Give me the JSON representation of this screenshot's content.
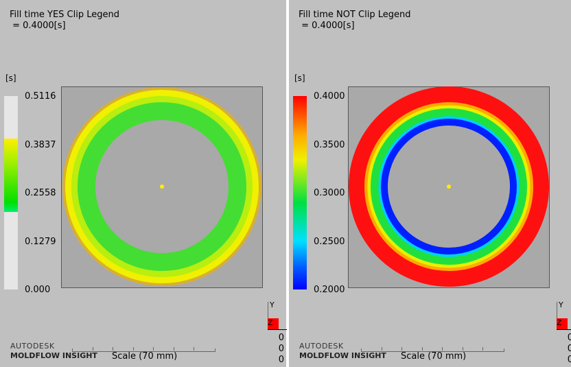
{
  "left": {
    "title": "Fill time YES Clip Legend",
    "subtitle": " = 0.4000[s]",
    "unit": "[s]",
    "ticks": [
      "0.5116",
      "0.3837",
      "0.2558",
      "0.1279",
      "0.000"
    ],
    "colors": {
      "ring_outer": "#ffee00",
      "ring_inner": "#22dd22"
    }
  },
  "right": {
    "title": "Fill time NOT Clip Legend",
    "subtitle": " = 0.4000[s]",
    "unit": "[s]",
    "ticks": [
      "0.4000",
      "0.3500",
      "0.3000",
      "0.2500",
      "0.2000"
    ],
    "colors": {
      "max": "#ff0000",
      "min": "#0000ff"
    }
  },
  "footer": {
    "brand1": "AUTODESK",
    "brand2": "MOLDFLOW INSIGHT",
    "scale": "Scale (70 mm)",
    "axis_y": "Y",
    "axis_z": "Z",
    "coords": [
      "0",
      "0",
      "0"
    ]
  }
}
